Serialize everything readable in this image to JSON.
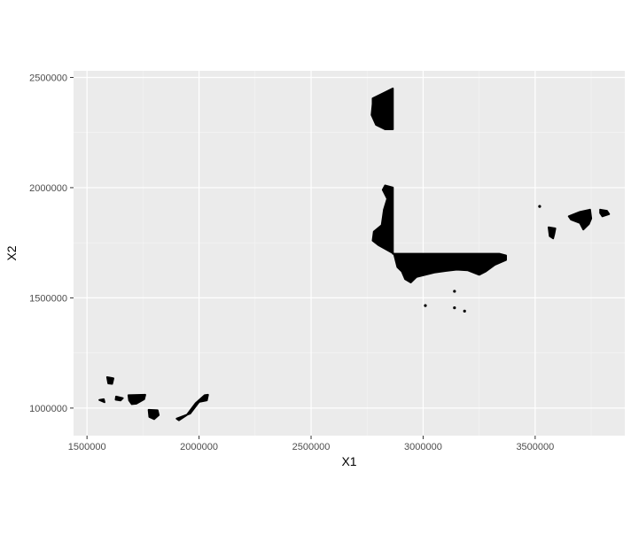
{
  "chart_data": {
    "type": "scatter",
    "title": "",
    "xlabel": "X1",
    "ylabel": "X2",
    "xlim": [
      1440000,
      3900000
    ],
    "ylim": [
      875000,
      2530000
    ],
    "x_ticks": [
      1500000,
      2000000,
      2500000,
      3000000,
      3500000
    ],
    "y_ticks": [
      1000000,
      1500000,
      2000000,
      2500000
    ],
    "x_tick_labels": [
      "1500000",
      "2000000",
      "2500000",
      "3000000",
      "3500000"
    ],
    "y_tick_labels": [
      "1000000",
      "1500000",
      "2000000",
      "2500000"
    ],
    "grid": true,
    "legend": "none",
    "colors": {
      "panel": "#ebebeb",
      "grid_major": "#ffffff",
      "grid_minor": "#f5f5f5",
      "points": "#000000",
      "axis_text": "#4d4d4d"
    },
    "clusters": [
      {
        "region": [
          [
            1555000,
            1037000
          ],
          [
            1578000,
            1027000
          ],
          [
            1575000,
            1040000
          ]
        ]
      },
      {
        "region": [
          [
            1590000,
            1140000
          ],
          [
            1618000,
            1135000
          ],
          [
            1612000,
            1110000
          ],
          [
            1595000,
            1112000
          ]
        ]
      },
      {
        "region": [
          [
            1630000,
            1052000
          ],
          [
            1660000,
            1045000
          ],
          [
            1650000,
            1035000
          ],
          [
            1628000,
            1038000
          ]
        ]
      },
      {
        "region": [
          [
            1685000,
            1058000
          ],
          [
            1760000,
            1060000
          ],
          [
            1755000,
            1040000
          ],
          [
            1720000,
            1020000
          ],
          [
            1700000,
            1018000
          ],
          [
            1688000,
            1035000
          ]
        ]
      },
      {
        "region": [
          [
            1775000,
            992000
          ],
          [
            1815000,
            990000
          ],
          [
            1820000,
            968000
          ],
          [
            1800000,
            950000
          ],
          [
            1778000,
            960000
          ]
        ]
      },
      {
        "region": [
          [
            1900000,
            952000
          ],
          [
            1960000,
            975000
          ],
          [
            2000000,
            1028000
          ],
          [
            2035000,
            1035000
          ],
          [
            2040000,
            1060000
          ],
          [
            2025000,
            1058000
          ],
          [
            1985000,
            1022000
          ],
          [
            1945000,
            968000
          ],
          [
            1910000,
            945000
          ]
        ]
      },
      {
        "region": [
          [
            2775000,
            2405000
          ],
          [
            2815000,
            2425000
          ],
          [
            2865000,
            2450000
          ],
          [
            2865000,
            2265000
          ],
          [
            2830000,
            2265000
          ],
          [
            2790000,
            2285000
          ],
          [
            2770000,
            2330000
          ],
          [
            2775000,
            2380000
          ]
        ]
      },
      {
        "region": [
          [
            2830000,
            2010000
          ],
          [
            2865000,
            2000000
          ],
          [
            2865000,
            1700000
          ],
          [
            3340000,
            1700000
          ],
          [
            3370000,
            1692000
          ],
          [
            3370000,
            1672000
          ],
          [
            3320000,
            1650000
          ],
          [
            3280000,
            1620000
          ],
          [
            3250000,
            1605000
          ],
          [
            3200000,
            1625000
          ],
          [
            3150000,
            1628000
          ],
          [
            3100000,
            1622000
          ],
          [
            3050000,
            1615000
          ],
          [
            3010000,
            1605000
          ],
          [
            2970000,
            1595000
          ],
          [
            2945000,
            1570000
          ],
          [
            2920000,
            1585000
          ],
          [
            2905000,
            1620000
          ],
          [
            2885000,
            1640000
          ],
          [
            2870000,
            1700000
          ],
          [
            2800000,
            1740000
          ],
          [
            2775000,
            1760000
          ],
          [
            2780000,
            1800000
          ],
          [
            2815000,
            1830000
          ],
          [
            2825000,
            1900000
          ],
          [
            2840000,
            1950000
          ],
          [
            2820000,
            1990000
          ]
        ]
      },
      {
        "region": [
          [
            3560000,
            1820000
          ],
          [
            3590000,
            1815000
          ],
          [
            3585000,
            1790000
          ],
          [
            3580000,
            1770000
          ],
          [
            3565000,
            1780000
          ]
        ]
      },
      {
        "region": [
          [
            3650000,
            1870000
          ],
          [
            3700000,
            1890000
          ],
          [
            3745000,
            1900000
          ],
          [
            3750000,
            1860000
          ],
          [
            3740000,
            1835000
          ],
          [
            3715000,
            1810000
          ],
          [
            3700000,
            1840000
          ],
          [
            3660000,
            1855000
          ]
        ]
      },
      {
        "region": [
          [
            3790000,
            1900000
          ],
          [
            3820000,
            1895000
          ],
          [
            3830000,
            1880000
          ],
          [
            3800000,
            1870000
          ],
          [
            3790000,
            1885000
          ]
        ]
      }
    ],
    "points": [
      [
        3520000,
        1915000
      ],
      [
        3010000,
        1465000
      ],
      [
        3140000,
        1530000
      ],
      [
        3140000,
        1455000
      ],
      [
        3185000,
        1440000
      ]
    ]
  }
}
